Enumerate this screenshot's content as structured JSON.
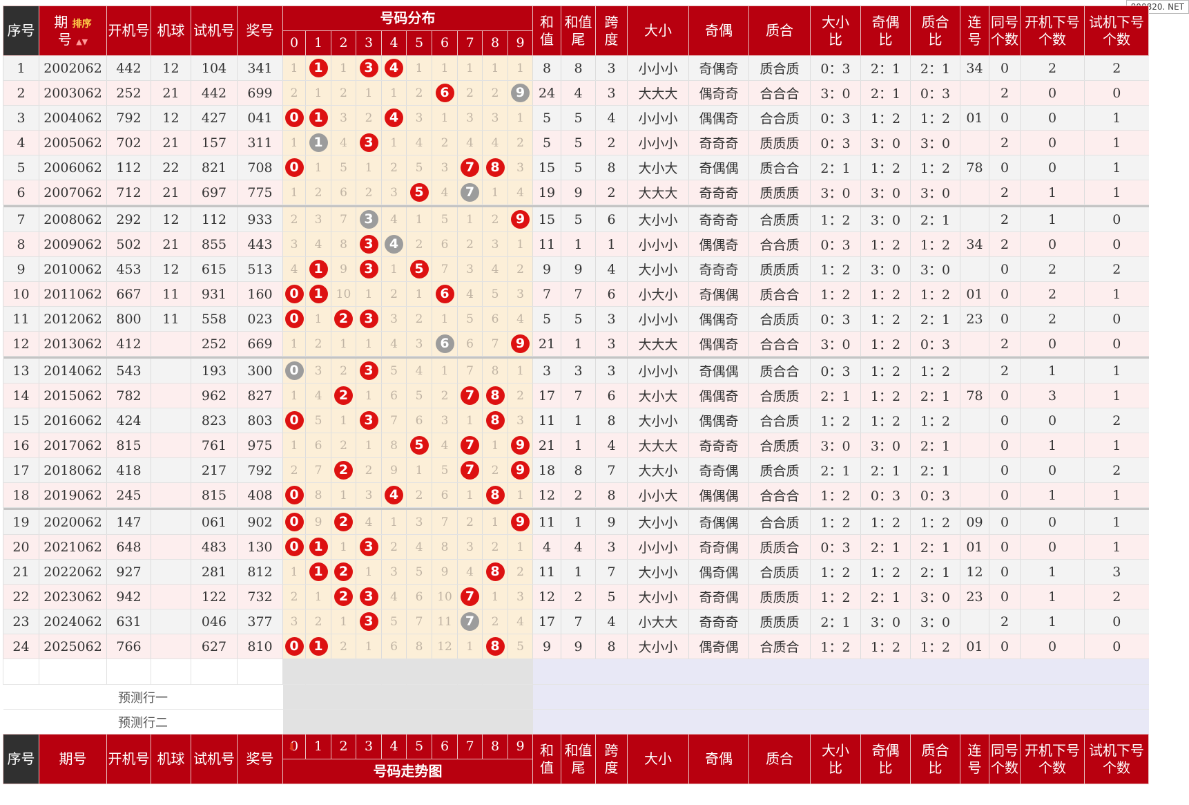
{
  "watermark": "800820. NET",
  "header": {
    "seq": "序号",
    "period_a": "期",
    "period_b": "号",
    "sort_label": "排序",
    "sort_arrows": "▲▼",
    "draw": "开机号",
    "machine": "机球",
    "test": "试机号",
    "prize": "奖号",
    "dist_title": "号码分布",
    "digits": [
      "0",
      "1",
      "2",
      "3",
      "4",
      "5",
      "6",
      "7",
      "8",
      "9"
    ],
    "sum_a": "和",
    "sum_b": "值",
    "sum_tail_a": "和值",
    "sum_tail_b": "尾",
    "span_a": "跨",
    "span_b": "度",
    "size": "大小",
    "oddeven": "奇偶",
    "primecomp": "质合",
    "size_ratio_a": "大小",
    "size_ratio_b": "比",
    "oe_ratio_a": "奇偶",
    "oe_ratio_b": "比",
    "pc_ratio_a": "质合",
    "pc_ratio_b": "比",
    "consec_a": "连",
    "consec_b": "号",
    "same_a": "同号",
    "same_b": "个数",
    "draw_next_a": "开机下号",
    "draw_next_b": "个数",
    "test_next_a": "试机下号",
    "test_next_b": "个数"
  },
  "footer": {
    "seq": "序号",
    "period": "期号",
    "trend_title": "号码走势图"
  },
  "prediction_rows": [
    "预测行一",
    "预测行二"
  ],
  "rows": [
    {
      "seq": "1",
      "period": "2002062",
      "draw": "442",
      "machine": "12",
      "test": "104",
      "prize": "341",
      "dist": [
        "1",
        "1",
        "1",
        "3",
        "4",
        "1",
        "1",
        "1",
        "1",
        "1"
      ],
      "marks": [
        "",
        "r",
        "",
        "r",
        "r",
        "",
        "",
        "",
        "",
        ""
      ],
      "sum": "8",
      "tail": "8",
      "span": "3",
      "size": "小小小",
      "oe": "奇偶奇",
      "pc": "质合质",
      "sr": "0：3",
      "oer": "2：1",
      "pcr": "2：1",
      "cons": "34",
      "same": "0",
      "dn": "2",
      "tn": "2"
    },
    {
      "seq": "2",
      "period": "2003062",
      "draw": "252",
      "machine": "21",
      "test": "442",
      "prize": "699",
      "dist": [
        "2",
        "1",
        "2",
        "1",
        "1",
        "2",
        "6",
        "2",
        "2",
        "9"
      ],
      "marks": [
        "",
        "",
        "",
        "",
        "",
        "",
        "r",
        "",
        "",
        "g"
      ],
      "sum": "24",
      "tail": "4",
      "span": "3",
      "size": "大大大",
      "oe": "偶奇奇",
      "pc": "合合合",
      "sr": "3：0",
      "oer": "2：1",
      "pcr": "0：3",
      "cons": "",
      "same": "2",
      "dn": "0",
      "tn": "0"
    },
    {
      "seq": "3",
      "period": "2004062",
      "draw": "792",
      "machine": "12",
      "test": "427",
      "prize": "041",
      "dist": [
        "0",
        "1",
        "3",
        "2",
        "4",
        "3",
        "1",
        "3",
        "3",
        "1"
      ],
      "marks": [
        "r",
        "r",
        "",
        "",
        "r",
        "",
        "",
        "",
        "",
        ""
      ],
      "sum": "5",
      "tail": "5",
      "span": "4",
      "size": "小小小",
      "oe": "偶偶奇",
      "pc": "合合质",
      "sr": "0：3",
      "oer": "1：2",
      "pcr": "1：2",
      "cons": "01",
      "same": "0",
      "dn": "0",
      "tn": "1"
    },
    {
      "seq": "4",
      "period": "2005062",
      "draw": "702",
      "machine": "21",
      "test": "157",
      "prize": "311",
      "dist": [
        "1",
        "1",
        "4",
        "3",
        "1",
        "4",
        "2",
        "4",
        "4",
        "2"
      ],
      "marks": [
        "",
        "g",
        "",
        "r",
        "",
        "",
        "",
        "",
        "",
        ""
      ],
      "sum": "5",
      "tail": "5",
      "span": "2",
      "size": "小小小",
      "oe": "奇奇奇",
      "pc": "质质质",
      "sr": "0：3",
      "oer": "3：0",
      "pcr": "3：0",
      "cons": "",
      "same": "2",
      "dn": "0",
      "tn": "1"
    },
    {
      "seq": "5",
      "period": "2006062",
      "draw": "112",
      "machine": "22",
      "test": "821",
      "prize": "708",
      "dist": [
        "0",
        "1",
        "5",
        "1",
        "2",
        "5",
        "3",
        "7",
        "8",
        "3"
      ],
      "marks": [
        "r",
        "",
        "",
        "",
        "",
        "",
        "",
        "r",
        "r",
        ""
      ],
      "sum": "15",
      "tail": "5",
      "span": "8",
      "size": "大小大",
      "oe": "奇偶偶",
      "pc": "质合合",
      "sr": "2：1",
      "oer": "1：2",
      "pcr": "1：2",
      "cons": "78",
      "same": "0",
      "dn": "0",
      "tn": "1"
    },
    {
      "seq": "6",
      "period": "2007062",
      "draw": "712",
      "machine": "21",
      "test": "697",
      "prize": "775",
      "dist": [
        "1",
        "2",
        "6",
        "2",
        "3",
        "5",
        "4",
        "7",
        "1",
        "4"
      ],
      "marks": [
        "",
        "",
        "",
        "",
        "",
        "r",
        "",
        "g",
        "",
        ""
      ],
      "sum": "19",
      "tail": "9",
      "span": "2",
      "size": "大大大",
      "oe": "奇奇奇",
      "pc": "质质质",
      "sr": "3：0",
      "oer": "3：0",
      "pcr": "3：0",
      "cons": "",
      "same": "2",
      "dn": "1",
      "tn": "1"
    },
    {
      "seq": "7",
      "period": "2008062",
      "draw": "292",
      "machine": "12",
      "test": "112",
      "prize": "933",
      "dist": [
        "2",
        "3",
        "7",
        "3",
        "4",
        "1",
        "5",
        "1",
        "2",
        "9"
      ],
      "marks": [
        "",
        "",
        "",
        "g",
        "",
        "",
        "",
        "",
        "",
        "r"
      ],
      "sum": "15",
      "tail": "5",
      "span": "6",
      "size": "大小小",
      "oe": "奇奇奇",
      "pc": "合质质",
      "sr": "1：2",
      "oer": "3：0",
      "pcr": "2：1",
      "cons": "",
      "same": "2",
      "dn": "1",
      "tn": "0"
    },
    {
      "seq": "8",
      "period": "2009062",
      "draw": "502",
      "machine": "21",
      "test": "855",
      "prize": "443",
      "dist": [
        "3",
        "4",
        "8",
        "3",
        "4",
        "2",
        "6",
        "2",
        "3",
        "1"
      ],
      "marks": [
        "",
        "",
        "",
        "r",
        "g",
        "",
        "",
        "",
        "",
        ""
      ],
      "sum": "11",
      "tail": "1",
      "span": "1",
      "size": "小小小",
      "oe": "偶偶奇",
      "pc": "合合质",
      "sr": "0：3",
      "oer": "1：2",
      "pcr": "1：2",
      "cons": "34",
      "same": "2",
      "dn": "0",
      "tn": "0"
    },
    {
      "seq": "9",
      "period": "2010062",
      "draw": "453",
      "machine": "12",
      "test": "615",
      "prize": "513",
      "dist": [
        "4",
        "1",
        "9",
        "3",
        "1",
        "5",
        "7",
        "3",
        "4",
        "2"
      ],
      "marks": [
        "",
        "r",
        "",
        "r",
        "",
        "r",
        "",
        "",
        "",
        ""
      ],
      "sum": "9",
      "tail": "9",
      "span": "4",
      "size": "大小小",
      "oe": "奇奇奇",
      "pc": "质质质",
      "sr": "1：2",
      "oer": "3：0",
      "pcr": "3：0",
      "cons": "",
      "same": "0",
      "dn": "2",
      "tn": "2"
    },
    {
      "seq": "10",
      "period": "2011062",
      "draw": "667",
      "machine": "11",
      "test": "931",
      "prize": "160",
      "dist": [
        "0",
        "1",
        "10",
        "1",
        "2",
        "1",
        "6",
        "4",
        "5",
        "3"
      ],
      "marks": [
        "r",
        "r",
        "",
        "",
        "",
        "",
        "r",
        "",
        "",
        ""
      ],
      "sum": "7",
      "tail": "7",
      "span": "6",
      "size": "小大小",
      "oe": "奇偶偶",
      "pc": "质合合",
      "sr": "1：2",
      "oer": "1：2",
      "pcr": "1：2",
      "cons": "01",
      "same": "0",
      "dn": "2",
      "tn": "1"
    },
    {
      "seq": "11",
      "period": "2012062",
      "draw": "800",
      "machine": "11",
      "test": "558",
      "prize": "023",
      "dist": [
        "0",
        "1",
        "2",
        "3",
        "3",
        "2",
        "1",
        "5",
        "6",
        "4"
      ],
      "marks": [
        "r",
        "",
        "r",
        "r",
        "",
        "",
        "",
        "",
        "",
        ""
      ],
      "sum": "5",
      "tail": "5",
      "span": "3",
      "size": "小小小",
      "oe": "偶偶奇",
      "pc": "合质质",
      "sr": "0：3",
      "oer": "1：2",
      "pcr": "2：1",
      "cons": "23",
      "same": "0",
      "dn": "2",
      "tn": "0"
    },
    {
      "seq": "12",
      "period": "2013062",
      "draw": "412",
      "machine": "",
      "test": "252",
      "prize": "669",
      "dist": [
        "1",
        "2",
        "1",
        "1",
        "4",
        "3",
        "6",
        "6",
        "7",
        "9"
      ],
      "marks": [
        "",
        "",
        "",
        "",
        "",
        "",
        "g",
        "",
        "",
        "r"
      ],
      "sum": "21",
      "tail": "1",
      "span": "3",
      "size": "大大大",
      "oe": "偶偶奇",
      "pc": "合合合",
      "sr": "3：0",
      "oer": "1：2",
      "pcr": "0：3",
      "cons": "",
      "same": "2",
      "dn": "0",
      "tn": "0"
    },
    {
      "seq": "13",
      "period": "2014062",
      "draw": "543",
      "machine": "",
      "test": "193",
      "prize": "300",
      "dist": [
        "0",
        "3",
        "2",
        "3",
        "5",
        "4",
        "1",
        "7",
        "8",
        "1"
      ],
      "marks": [
        "g",
        "",
        "",
        "r",
        "",
        "",
        "",
        "",
        "",
        ""
      ],
      "sum": "3",
      "tail": "3",
      "span": "3",
      "size": "小小小",
      "oe": "奇偶偶",
      "pc": "质合合",
      "sr": "0：3",
      "oer": "1：2",
      "pcr": "1：2",
      "cons": "",
      "same": "2",
      "dn": "1",
      "tn": "1"
    },
    {
      "seq": "14",
      "period": "2015062",
      "draw": "782",
      "machine": "",
      "test": "962",
      "prize": "827",
      "dist": [
        "1",
        "4",
        "2",
        "1",
        "6",
        "5",
        "2",
        "7",
        "8",
        "2"
      ],
      "marks": [
        "",
        "",
        "r",
        "",
        "",
        "",
        "",
        "r",
        "r",
        ""
      ],
      "sum": "17",
      "tail": "7",
      "span": "6",
      "size": "大小大",
      "oe": "偶偶奇",
      "pc": "合质质",
      "sr": "2：1",
      "oer": "1：2",
      "pcr": "2：1",
      "cons": "78",
      "same": "0",
      "dn": "3",
      "tn": "1"
    },
    {
      "seq": "15",
      "period": "2016062",
      "draw": "424",
      "machine": "",
      "test": "823",
      "prize": "803",
      "dist": [
        "0",
        "5",
        "1",
        "3",
        "7",
        "6",
        "3",
        "1",
        "8",
        "3"
      ],
      "marks": [
        "r",
        "",
        "",
        "r",
        "",
        "",
        "",
        "",
        "r",
        ""
      ],
      "sum": "11",
      "tail": "1",
      "span": "8",
      "size": "大小小",
      "oe": "偶偶奇",
      "pc": "合合质",
      "sr": "1：2",
      "oer": "1：2",
      "pcr": "1：2",
      "cons": "",
      "same": "0",
      "dn": "0",
      "tn": "2"
    },
    {
      "seq": "16",
      "period": "2017062",
      "draw": "815",
      "machine": "",
      "test": "761",
      "prize": "975",
      "dist": [
        "1",
        "6",
        "2",
        "1",
        "8",
        "5",
        "4",
        "7",
        "1",
        "9"
      ],
      "marks": [
        "",
        "",
        "",
        "",
        "",
        "r",
        "",
        "r",
        "",
        "r"
      ],
      "sum": "21",
      "tail": "1",
      "span": "4",
      "size": "大大大",
      "oe": "奇奇奇",
      "pc": "合质质",
      "sr": "3：0",
      "oer": "3：0",
      "pcr": "2：1",
      "cons": "",
      "same": "0",
      "dn": "1",
      "tn": "1"
    },
    {
      "seq": "17",
      "period": "2018062",
      "draw": "418",
      "machine": "",
      "test": "217",
      "prize": "792",
      "dist": [
        "2",
        "7",
        "2",
        "2",
        "9",
        "1",
        "5",
        "7",
        "2",
        "9"
      ],
      "marks": [
        "",
        "",
        "r",
        "",
        "",
        "",
        "",
        "r",
        "",
        "r"
      ],
      "sum": "18",
      "tail": "8",
      "span": "7",
      "size": "大大小",
      "oe": "奇奇偶",
      "pc": "质合质",
      "sr": "2：1",
      "oer": "2：1",
      "pcr": "2：1",
      "cons": "",
      "same": "0",
      "dn": "0",
      "tn": "2"
    },
    {
      "seq": "18",
      "period": "2019062",
      "draw": "245",
      "machine": "",
      "test": "815",
      "prize": "408",
      "dist": [
        "0",
        "8",
        "1",
        "3",
        "4",
        "2",
        "6",
        "1",
        "8",
        "1"
      ],
      "marks": [
        "r",
        "",
        "",
        "",
        "r",
        "",
        "",
        "",
        "r",
        ""
      ],
      "sum": "12",
      "tail": "2",
      "span": "8",
      "size": "小小大",
      "oe": "偶偶偶",
      "pc": "合合合",
      "sr": "1：2",
      "oer": "0：3",
      "pcr": "0：3",
      "cons": "",
      "same": "0",
      "dn": "1",
      "tn": "1"
    },
    {
      "seq": "19",
      "period": "2020062",
      "draw": "147",
      "machine": "",
      "test": "061",
      "prize": "902",
      "dist": [
        "0",
        "9",
        "2",
        "4",
        "1",
        "3",
        "7",
        "2",
        "1",
        "9"
      ],
      "marks": [
        "r",
        "",
        "r",
        "",
        "",
        "",
        "",
        "",
        "",
        "r"
      ],
      "sum": "11",
      "tail": "1",
      "span": "9",
      "size": "大小小",
      "oe": "奇偶偶",
      "pc": "合合质",
      "sr": "1：2",
      "oer": "1：2",
      "pcr": "1：2",
      "cons": "09",
      "same": "0",
      "dn": "0",
      "tn": "1"
    },
    {
      "seq": "20",
      "period": "2021062",
      "draw": "648",
      "machine": "",
      "test": "483",
      "prize": "130",
      "dist": [
        "0",
        "1",
        "1",
        "3",
        "2",
        "4",
        "8",
        "3",
        "2",
        "1"
      ],
      "marks": [
        "r",
        "r",
        "",
        "r",
        "",
        "",
        "",
        "",
        "",
        ""
      ],
      "sum": "4",
      "tail": "4",
      "span": "3",
      "size": "小小小",
      "oe": "奇奇偶",
      "pc": "质质合",
      "sr": "0：3",
      "oer": "2：1",
      "pcr": "2：1",
      "cons": "01",
      "same": "0",
      "dn": "0",
      "tn": "1"
    },
    {
      "seq": "21",
      "period": "2022062",
      "draw": "927",
      "machine": "",
      "test": "281",
      "prize": "812",
      "dist": [
        "1",
        "1",
        "2",
        "1",
        "3",
        "5",
        "9",
        "4",
        "8",
        "2"
      ],
      "marks": [
        "",
        "r",
        "r",
        "",
        "",
        "",
        "",
        "",
        "r",
        ""
      ],
      "sum": "11",
      "tail": "1",
      "span": "7",
      "size": "大小小",
      "oe": "偶奇偶",
      "pc": "合质质",
      "sr": "1：2",
      "oer": "1：2",
      "pcr": "2：1",
      "cons": "12",
      "same": "0",
      "dn": "1",
      "tn": "3"
    },
    {
      "seq": "22",
      "period": "2023062",
      "draw": "942",
      "machine": "",
      "test": "122",
      "prize": "732",
      "dist": [
        "2",
        "1",
        "2",
        "3",
        "4",
        "6",
        "10",
        "7",
        "1",
        "3"
      ],
      "marks": [
        "",
        "",
        "r",
        "r",
        "",
        "",
        "",
        "r",
        "",
        ""
      ],
      "sum": "12",
      "tail": "2",
      "span": "5",
      "size": "大小小",
      "oe": "奇奇偶",
      "pc": "质质质",
      "sr": "1：2",
      "oer": "2：1",
      "pcr": "3：0",
      "cons": "23",
      "same": "0",
      "dn": "1",
      "tn": "2"
    },
    {
      "seq": "23",
      "period": "2024062",
      "draw": "631",
      "machine": "",
      "test": "046",
      "prize": "377",
      "dist": [
        "3",
        "2",
        "1",
        "3",
        "5",
        "7",
        "11",
        "7",
        "2",
        "4"
      ],
      "marks": [
        "",
        "",
        "",
        "r",
        "",
        "",
        "",
        "g",
        "",
        ""
      ],
      "sum": "17",
      "tail": "7",
      "span": "4",
      "size": "小大大",
      "oe": "奇奇奇",
      "pc": "质质质",
      "sr": "2：1",
      "oer": "3：0",
      "pcr": "3：0",
      "cons": "",
      "same": "2",
      "dn": "1",
      "tn": "0"
    },
    {
      "seq": "24",
      "period": "2025062",
      "draw": "766",
      "machine": "",
      "test": "627",
      "prize": "810",
      "dist": [
        "0",
        "1",
        "2",
        "1",
        "6",
        "8",
        "12",
        "1",
        "8",
        "5"
      ],
      "marks": [
        "r",
        "r",
        "",
        "",
        "",
        "",
        "",
        "",
        "r",
        ""
      ],
      "sum": "9",
      "tail": "9",
      "span": "8",
      "size": "大小小",
      "oe": "偶奇偶",
      "pc": "合质合",
      "sr": "1：2",
      "oer": "1：2",
      "pcr": "1：2",
      "cons": "01",
      "same": "0",
      "dn": "0",
      "tn": "0"
    }
  ]
}
